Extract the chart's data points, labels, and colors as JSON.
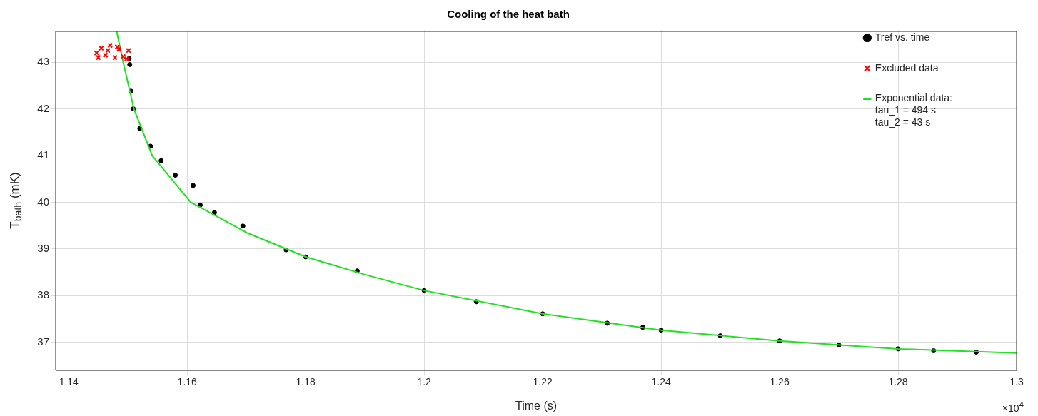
{
  "chart_data": {
    "type": "scatter",
    "title": "Cooling of the heat bath",
    "xlabel": "Time (s)",
    "ylabel": "T$_{bath}$ (mK)",
    "xlim": [
      1.1378,
      1.3
    ],
    "ylim": [
      36.4,
      43.66
    ],
    "xticks": [
      1.14,
      1.16,
      1.18,
      1.2,
      1.22,
      1.24,
      1.26,
      1.28,
      1.3
    ],
    "yticks": [
      37,
      38,
      39,
      40,
      41,
      42,
      43
    ],
    "grid": true,
    "legend": "top right",
    "annotations": [
      "×10$^{4}$"
    ],
    "series": [
      {
        "name": "Tref vs. time",
        "type": "scatter",
        "marker": "circle",
        "color": "#000000",
        "x": [
          1.1502,
          1.1503,
          1.1505,
          1.1509,
          1.152,
          1.1538,
          1.1556,
          1.158,
          1.161,
          1.1622,
          1.1646,
          1.1694,
          1.1767,
          1.18,
          1.1887,
          1.2,
          1.2088,
          1.22,
          1.2309,
          1.2369,
          1.24,
          1.25,
          1.26,
          1.27,
          1.28,
          1.286,
          1.2932
        ],
        "values": [
          43.08,
          42.95,
          42.38,
          42.0,
          41.58,
          41.2,
          40.89,
          40.58,
          40.36,
          39.94,
          39.78,
          39.49,
          38.98,
          38.83,
          38.53,
          38.11,
          37.87,
          37.61,
          37.41,
          37.32,
          37.26,
          37.14,
          37.03,
          36.94,
          36.86,
          36.82,
          36.79
        ]
      },
      {
        "name": "Excluded data",
        "type": "scatter",
        "marker": "cross",
        "color": "#ff0000",
        "x": [
          1.1447,
          1.1455,
          1.1462,
          1.147,
          1.1478,
          1.1485,
          1.1492,
          1.1501,
          1.145,
          1.1466,
          1.1482,
          1.1498
        ],
        "values": [
          43.2,
          43.3,
          43.15,
          43.36,
          43.1,
          43.28,
          43.12,
          43.25,
          43.1,
          43.25,
          43.33,
          43.07
        ]
      },
      {
        "name": "Exponential data:\ntau_1 = 494 s\ntau_2 = 43 s",
        "type": "line",
        "marker": "none",
        "color": "#22e022",
        "x": [
          1.1481,
          1.1492,
          1.151,
          1.1541,
          1.1606,
          1.17,
          1.18,
          1.19,
          1.2,
          1.22,
          1.24,
          1.26,
          1.28,
          1.3
        ],
        "values": [
          43.66,
          43.0,
          42.0,
          41.0,
          40.0,
          39.35,
          38.83,
          38.45,
          38.11,
          37.61,
          37.26,
          37.03,
          36.86,
          36.77
        ]
      }
    ]
  }
}
